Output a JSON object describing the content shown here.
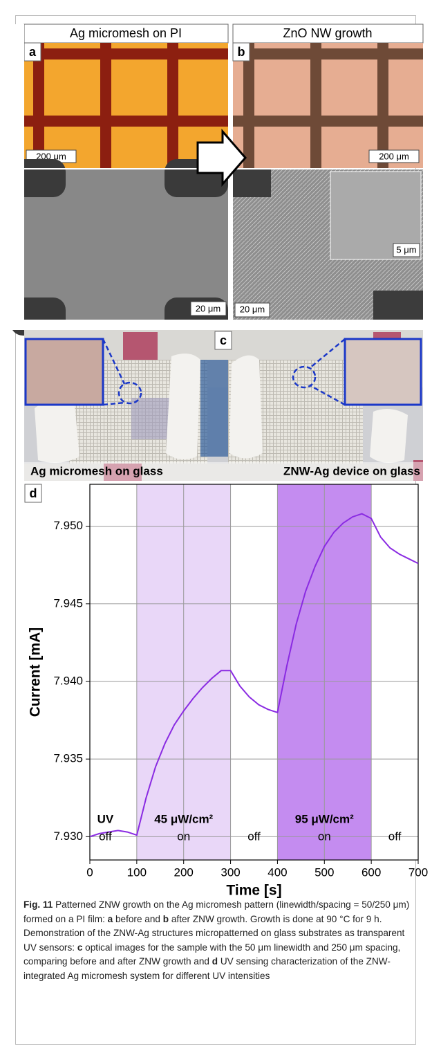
{
  "panels": {
    "a": {
      "label": "a",
      "header": "Ag micromesh on PI",
      "scale_optical": "200 μm",
      "scale_sem": "20 μm"
    },
    "b": {
      "label": "b",
      "header": "ZnO NW growth",
      "scale_optical": "200 μm",
      "scale_sem": "20 μm",
      "scale_inset": "5 μm"
    },
    "c": {
      "label": "c",
      "left_caption": "Ag micromesh on glass",
      "right_caption": "ZNW-Ag device on glass"
    },
    "d": {
      "label": "d"
    }
  },
  "chart_data": {
    "type": "line",
    "x_label": "Time [s]",
    "y_label": "Current [mA]",
    "xlim": [
      0,
      700
    ],
    "xticks": [
      0,
      100,
      200,
      300,
      400,
      500,
      600,
      700
    ],
    "ylim": [
      7.9285,
      7.9527
    ],
    "yticks": [
      {
        "value": 7.93,
        "label": "7.930"
      },
      {
        "value": 7.935,
        "label": "7.935"
      },
      {
        "value": 7.94,
        "label": "7.940"
      },
      {
        "value": 7.945,
        "label": "7.945"
      },
      {
        "value": 7.95,
        "label": "7.950"
      }
    ],
    "grid": true,
    "regions": [
      {
        "x": [
          100,
          300
        ],
        "color": "#e9d7f8"
      },
      {
        "x": [
          400,
          600
        ],
        "color": "#c48cf0"
      }
    ],
    "annotations": [
      {
        "title": "UV",
        "text": "off"
      },
      {
        "title": "45 μW/cm²",
        "text": "on"
      },
      {
        "text": "off"
      },
      {
        "title": "95 μW/cm²",
        "text": "on"
      },
      {
        "text": "off"
      }
    ],
    "series": [
      {
        "color": "#8a2be2",
        "x": [
          0,
          20,
          40,
          60,
          80,
          100,
          120,
          140,
          160,
          180,
          200,
          220,
          240,
          260,
          280,
          300,
          320,
          340,
          360,
          380,
          400,
          420,
          440,
          460,
          480,
          500,
          520,
          540,
          560,
          580,
          600,
          620,
          640,
          660,
          680,
          700
        ],
        "values": [
          7.93,
          7.9302,
          7.9303,
          7.9304,
          7.9303,
          7.9301,
          7.9325,
          7.9345,
          7.936,
          7.9372,
          7.9381,
          7.9389,
          7.9396,
          7.9402,
          7.9407,
          7.9407,
          7.9397,
          7.939,
          7.9385,
          7.9382,
          7.938,
          7.941,
          7.9437,
          7.9458,
          7.9474,
          7.9487,
          7.9496,
          7.9502,
          7.9506,
          7.9508,
          7.9505,
          7.9493,
          7.9486,
          7.9482,
          7.9479,
          7.9476
        ]
      }
    ]
  },
  "caption": {
    "parts": [
      "Fig. 11",
      " Patterned ZNW growth on the Ag micromesh pattern (linewidth/spacing = 50/250 μm) formed on a PI film: ",
      "a",
      " before and ",
      "b",
      " after ZNW growth. Growth is done at 90 °C for 9 h. Demonstration of the ZNW-Ag structures micropatterned on glass substrates as transparent UV sensors: ",
      "c",
      " optical images for the sample with the 50 μm linewidth and 250 μm spacing, comparing before and after ZNW growth and ",
      "d",
      " UV sensing characterization of the ZNW-integrated Ag micromesh system for different UV intensities"
    ]
  }
}
